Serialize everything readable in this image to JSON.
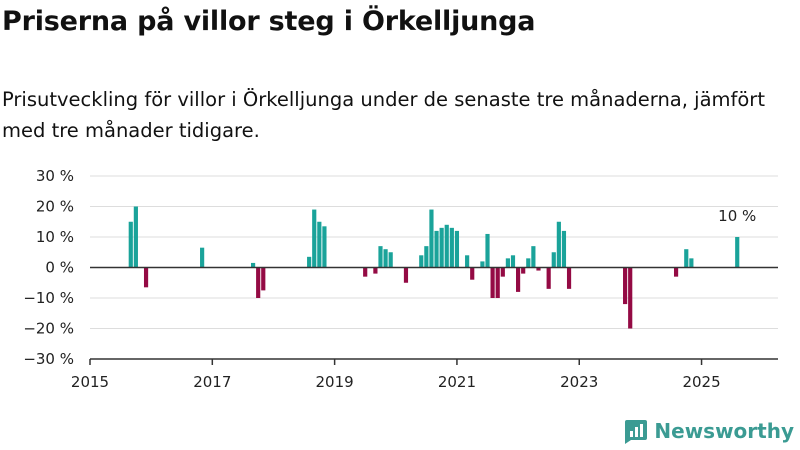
{
  "header": {
    "title": "Priserna på villor steg i Örkelljunga",
    "subtitle": "Prisutveckling för villor i Örkelljunga under de senaste tre månaderna, jämfört med tre månader tidigare."
  },
  "brand": {
    "name": "Newsworthy"
  },
  "colors": {
    "positive": "#1aa39a",
    "negative": "#940a44",
    "grid": "#dddddd",
    "axis": "#333333",
    "brand": "#3b9b93"
  },
  "chart_data": {
    "type": "bar",
    "x_type": "date",
    "ylim": [
      -30,
      30
    ],
    "xlim": [
      "2015-01",
      "2026-04"
    ],
    "y_ticks": [
      {
        "value": 30,
        "label": "30 %"
      },
      {
        "value": 20,
        "label": "20 %"
      },
      {
        "value": 10,
        "label": "10 %"
      },
      {
        "value": 0,
        "label": "0 %"
      },
      {
        "value": -10,
        "label": "−10 %"
      },
      {
        "value": -20,
        "label": "−20 %"
      },
      {
        "value": -30,
        "label": "−30 %"
      }
    ],
    "x_ticks": [
      {
        "value": "2015-01",
        "label": "2015"
      },
      {
        "value": "2017-01",
        "label": "2017"
      },
      {
        "value": "2019-01",
        "label": "2019"
      },
      {
        "value": "2021-01",
        "label": "2021"
      },
      {
        "value": "2023-01",
        "label": "2023"
      },
      {
        "value": "2025-01",
        "label": "2025"
      }
    ],
    "grid": true,
    "annotations": [
      {
        "x": "2025-08",
        "y": 10,
        "text": "10 %"
      }
    ],
    "series": [
      {
        "points": [
          {
            "x": "2015-09",
            "y": 15
          },
          {
            "x": "2015-10",
            "y": 20
          },
          {
            "x": "2015-12",
            "y": -6.5
          },
          {
            "x": "2016-11",
            "y": 6.5
          },
          {
            "x": "2017-09",
            "y": 1.5
          },
          {
            "x": "2017-10",
            "y": -10
          },
          {
            "x": "2017-11",
            "y": -7.5
          },
          {
            "x": "2018-08",
            "y": 3.5
          },
          {
            "x": "2018-09",
            "y": 19
          },
          {
            "x": "2018-10",
            "y": 15
          },
          {
            "x": "2018-11",
            "y": 13.5
          },
          {
            "x": "2019-07",
            "y": -3
          },
          {
            "x": "2019-09",
            "y": -2
          },
          {
            "x": "2019-10",
            "y": 7
          },
          {
            "x": "2019-11",
            "y": 6
          },
          {
            "x": "2019-12",
            "y": 5
          },
          {
            "x": "2020-03",
            "y": -5
          },
          {
            "x": "2020-06",
            "y": 4
          },
          {
            "x": "2020-07",
            "y": 7
          },
          {
            "x": "2020-08",
            "y": 19
          },
          {
            "x": "2020-09",
            "y": 12
          },
          {
            "x": "2020-10",
            "y": 13
          },
          {
            "x": "2020-11",
            "y": 14
          },
          {
            "x": "2020-12",
            "y": 13
          },
          {
            "x": "2021-01",
            "y": 12
          },
          {
            "x": "2021-03",
            "y": 4
          },
          {
            "x": "2021-04",
            "y": -4
          },
          {
            "x": "2021-06",
            "y": 2
          },
          {
            "x": "2021-07",
            "y": 11
          },
          {
            "x": "2021-08",
            "y": -10
          },
          {
            "x": "2021-09",
            "y": -10
          },
          {
            "x": "2021-10",
            "y": -3
          },
          {
            "x": "2021-11",
            "y": 3
          },
          {
            "x": "2021-12",
            "y": 4
          },
          {
            "x": "2022-01",
            "y": -8
          },
          {
            "x": "2022-02",
            "y": -2
          },
          {
            "x": "2022-03",
            "y": 3
          },
          {
            "x": "2022-04",
            "y": 7
          },
          {
            "x": "2022-05",
            "y": -1
          },
          {
            "x": "2022-07",
            "y": -7
          },
          {
            "x": "2022-08",
            "y": 5
          },
          {
            "x": "2022-09",
            "y": 15
          },
          {
            "x": "2022-10",
            "y": 12
          },
          {
            "x": "2022-11",
            "y": -7
          },
          {
            "x": "2023-10",
            "y": -12
          },
          {
            "x": "2023-11",
            "y": -20
          },
          {
            "x": "2024-08",
            "y": -3
          },
          {
            "x": "2024-10",
            "y": 6
          },
          {
            "x": "2024-11",
            "y": 3
          },
          {
            "x": "2025-08",
            "y": 10
          }
        ]
      }
    ]
  }
}
